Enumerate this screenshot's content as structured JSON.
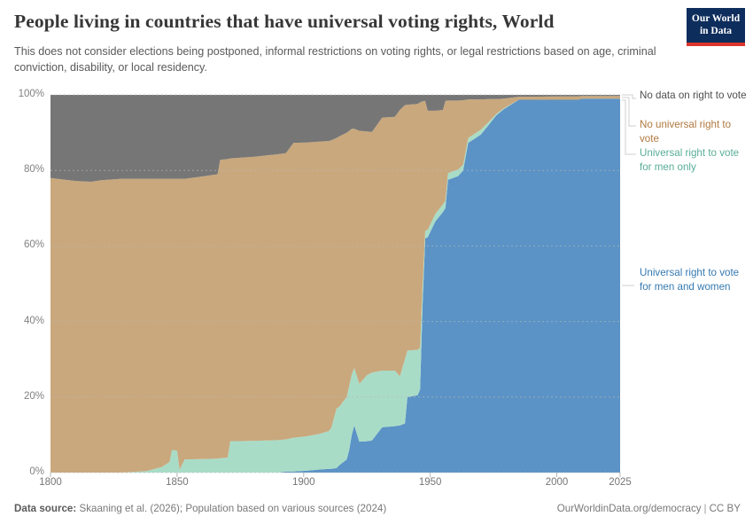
{
  "header": {
    "title": "People living in countries that have universal voting rights, World",
    "subtitle": "This does not consider elections being postponed, informal restrictions on voting rights, or legal restrictions based on age, criminal conviction, disability, or local residency.",
    "logo": {
      "line1": "Our World",
      "line2": "in Data",
      "bg_color": "#0d2d5c",
      "accent_color": "#dc352b"
    }
  },
  "chart_data": {
    "type": "area",
    "stacked": true,
    "unit": "%",
    "title": "People living in countries that have universal voting rights, World",
    "x_range": [
      1800,
      2025
    ],
    "y_range": [
      0,
      100
    ],
    "x_ticks": [
      1800,
      1850,
      1900,
      1950,
      2000,
      2025
    ],
    "y_ticks": [
      0,
      20,
      40,
      60,
      80,
      100
    ],
    "y_tick_suffix": "%",
    "grid": "dashed-horizontal",
    "legend_position": "right",
    "x": [
      1800,
      1810,
      1816,
      1820,
      1828,
      1838,
      1844,
      1847,
      1848,
      1850,
      1851,
      1853,
      1860,
      1866,
      1867,
      1870,
      1871,
      1880,
      1890,
      1893,
      1896,
      1901,
      1906,
      1910,
      1911,
      1913,
      1914,
      1917,
      1918,
      1919,
      1920,
      1922,
      1925,
      1927,
      1931,
      1936,
      1938,
      1940,
      1941,
      1945,
      1946,
      1947,
      1948,
      1949,
      1952,
      1955,
      1956,
      1957,
      1961,
      1963,
      1965,
      1970,
      1973,
      1976,
      1979,
      1985,
      1990,
      2000,
      2008,
      2010,
      2025
    ],
    "series": [
      {
        "key": "universal-men-and-women",
        "name": "Universal right to vote for men and women",
        "color": "#5b93c6",
        "values": [
          0,
          0,
          0,
          0,
          0,
          0,
          0,
          0,
          0,
          0,
          0,
          0,
          0,
          0,
          0,
          0,
          0,
          0,
          0,
          0.3,
          0.3,
          0.5,
          0.8,
          1,
          1,
          1.2,
          1.9,
          3.5,
          6,
          10,
          12.5,
          8.2,
          8.3,
          8.5,
          12,
          12.3,
          12.5,
          13,
          20,
          20.5,
          22,
          45,
          62,
          62.3,
          66.5,
          69,
          70,
          77.5,
          78.5,
          80,
          87.3,
          89.5,
          92,
          94.5,
          96.2,
          98.7,
          98.7,
          98.7,
          98.7,
          99,
          99
        ]
      },
      {
        "key": "universal-men-only",
        "name": "Universal right to vote for men only",
        "color": "#a9dcc7",
        "values": [
          0,
          0,
          0,
          0,
          0,
          0.4,
          1.5,
          2.8,
          6,
          5.8,
          0.8,
          3.5,
          3.6,
          3.7,
          3.8,
          4,
          8.3,
          8.4,
          8.6,
          8.5,
          8.9,
          9.1,
          9.4,
          10,
          11,
          15.8,
          15.5,
          16.5,
          17,
          16,
          15.2,
          15.3,
          17.5,
          18,
          15,
          14.7,
          13,
          17,
          12.3,
          12,
          11,
          5,
          2,
          2,
          2,
          2,
          2,
          1.8,
          1.7,
          1.5,
          1.3,
          1.3,
          0.8,
          0.4,
          0.2,
          0,
          0,
          0,
          0,
          0,
          0
        ]
      },
      {
        "key": "no-universal-right",
        "name": "No universal right to vote",
        "color": "#c9a87d",
        "values": [
          78,
          77.2,
          77,
          77.4,
          77.8,
          77.4,
          76.3,
          75,
          71.8,
          72,
          77,
          74.3,
          74.8,
          75.3,
          79,
          79,
          74.9,
          75.2,
          75.7,
          75.8,
          78.1,
          77.8,
          77.4,
          76.8,
          76,
          71.6,
          71.6,
          70,
          67.5,
          65,
          63.3,
          67,
          64.5,
          63.7,
          67,
          67.2,
          70.5,
          67.3,
          65.1,
          65.1,
          65,
          48.3,
          34.4,
          31.5,
          27.3,
          25,
          26.4,
          19.2,
          18.3,
          17.1,
          10.2,
          8,
          6.1,
          4,
          2.6,
          0.8,
          0.8,
          0.9,
          0.9,
          0.7,
          0.7
        ]
      },
      {
        "key": "no-data",
        "name": "No data on right to vote",
        "color": "#767676",
        "values": [
          22,
          22.8,
          23,
          22.6,
          22.2,
          22.2,
          22.2,
          22.2,
          22.2,
          22.2,
          22.2,
          22.2,
          21.6,
          21,
          17.2,
          17,
          16.8,
          16.4,
          15.7,
          15.4,
          12.7,
          12.6,
          12.4,
          12.2,
          12,
          11.4,
          11,
          10,
          9.5,
          9,
          9,
          9.5,
          9.7,
          9.8,
          6,
          5.8,
          4,
          2.7,
          2.6,
          2.4,
          2,
          1.7,
          1.6,
          4.2,
          4.2,
          4,
          1.6,
          1.5,
          1.5,
          1.4,
          1.2,
          1.2,
          1.1,
          1.1,
          1,
          0.5,
          0.5,
          0.4,
          0.4,
          0.3,
          0.3
        ]
      }
    ]
  },
  "legend": {
    "items": [
      {
        "key": "no-data",
        "label": "No data on right to vote",
        "text_color": "#4e4e4e"
      },
      {
        "key": "no-universal-right",
        "label": "No universal right to vote",
        "text_color": "#b0793f"
      },
      {
        "key": "universal-men-only",
        "label": "Universal right to vote for men only",
        "text_color": "#58ad97"
      },
      {
        "key": "universal-men-and-women",
        "label": "Universal right to vote for men and women",
        "text_color": "#3579b1"
      }
    ]
  },
  "footer": {
    "source_label": "Data source:",
    "source_text": "Skaaning et al. (2026); Population based on various sources (2024)",
    "link_text": "OurWorldinData.org/democracy",
    "separator": "|",
    "license_text": "CC BY"
  }
}
